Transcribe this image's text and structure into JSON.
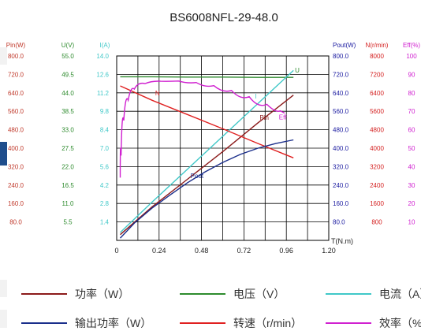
{
  "chart_data": {
    "type": "line",
    "title": "BS6008NFL-29-48.0",
    "xlabel": "T(N.m)",
    "x_ticks": [
      "0",
      "0.24",
      "0.48",
      "0.72",
      "0.96",
      "1.20"
    ],
    "xlim": [
      0,
      1.2
    ],
    "left_axes": [
      {
        "name": "Pin(W)",
        "color": "#c0392b",
        "ticks": [
          "800.0",
          "720.0",
          "640.0",
          "560.0",
          "480.0",
          "400.0",
          "320.0",
          "240.0",
          "160.0",
          "80.0"
        ]
      },
      {
        "name": "U(V)",
        "color": "#2e8b2e",
        "ticks": [
          "55.0",
          "49.5",
          "44.0",
          "38.5",
          "33.0",
          "27.5",
          "22.0",
          "16.5",
          "11.0",
          "5.5"
        ]
      },
      {
        "name": "I(A)",
        "color": "#40c8c8",
        "ticks": [
          "14.0",
          "12.6",
          "11.2",
          "9.8",
          "8.4",
          "7.0",
          "5.6",
          "4.2",
          "2.8",
          "1.4"
        ]
      }
    ],
    "right_axes": [
      {
        "name": "Pout(W)",
        "color": "#1a1aa0",
        "ticks": [
          "800.0",
          "720.0",
          "640.0",
          "560.0",
          "480.0",
          "400.0",
          "320.0",
          "240.0",
          "160.0",
          "80.0"
        ]
      },
      {
        "name": "N(r/min)",
        "color": "#d42020",
        "ticks": [
          "8000",
          "7200",
          "6400",
          "5600",
          "4800",
          "4000",
          "3200",
          "2400",
          "1600",
          "800"
        ]
      },
      {
        "name": "Eff(%)",
        "color": "#d020d0",
        "ticks": [
          "100",
          "90",
          "80",
          "70",
          "60",
          "50",
          "40",
          "30",
          "20",
          "10"
        ]
      }
    ],
    "series": [
      {
        "name": "U",
        "label": "U",
        "color": "#2e8b2e",
        "ymax": 55,
        "x": [
          0.02,
          0.2,
          0.4,
          0.6,
          0.8,
          1.0
        ],
        "y": [
          48.8,
          48.8,
          48.7,
          48.7,
          48.6,
          48.6
        ]
      },
      {
        "name": "I",
        "label": "I",
        "color": "#40c8c8",
        "ymax": 14,
        "x": [
          0.02,
          0.2,
          0.4,
          0.6,
          0.8,
          1.0
        ],
        "y": [
          0.6,
          2.9,
          5.4,
          7.9,
          10.4,
          12.9
        ]
      },
      {
        "name": "Pin",
        "label": "Pin",
        "color": "#8b1a1a",
        "ymax": 800,
        "x": [
          0.02,
          0.2,
          0.4,
          0.6,
          0.8,
          1.0
        ],
        "y": [
          25,
          145,
          265,
          385,
          510,
          630
        ]
      },
      {
        "name": "N",
        "label": "N",
        "color": "#e02020",
        "ymax": 8000,
        "x": [
          0.02,
          0.2,
          0.4,
          0.6,
          0.8,
          1.0
        ],
        "y": [
          6700,
          6080,
          5460,
          4840,
          4200,
          3580
        ]
      },
      {
        "name": "Pout",
        "label": "Pout",
        "color": "#1a2e8b",
        "ymax": 800,
        "x": [
          0.02,
          0.1,
          0.2,
          0.3,
          0.4,
          0.5,
          0.6,
          0.7,
          0.8,
          0.9,
          1.0
        ],
        "y": [
          10,
          75,
          140,
          196,
          250,
          297,
          338,
          373,
          400,
          420,
          436
        ]
      },
      {
        "name": "Eff",
        "label": "Eff",
        "color": "#d020d0",
        "ymax": 100,
        "x": [
          0.02,
          0.03,
          0.05,
          0.08,
          0.12,
          0.2,
          0.3,
          0.4,
          0.5,
          0.6,
          0.7,
          0.8,
          0.9,
          0.95
        ],
        "y": [
          34,
          58,
          72,
          80,
          84,
          86,
          86.6,
          86.2,
          85,
          82.8,
          79.8,
          76,
          71.5,
          69
        ]
      }
    ]
  },
  "legend": [
    {
      "label": "功率（W）",
      "color": "#8b1a1a"
    },
    {
      "label": "电压（V）",
      "color": "#2e8b2e"
    },
    {
      "label": "电流（A）",
      "color": "#40c8c8"
    },
    {
      "label": "输出功率（W）",
      "color": "#1a2e8b"
    },
    {
      "label": "转速（r/min）",
      "color": "#e02020"
    },
    {
      "label": "效率（%）",
      "color": "#d020d0"
    }
  ]
}
